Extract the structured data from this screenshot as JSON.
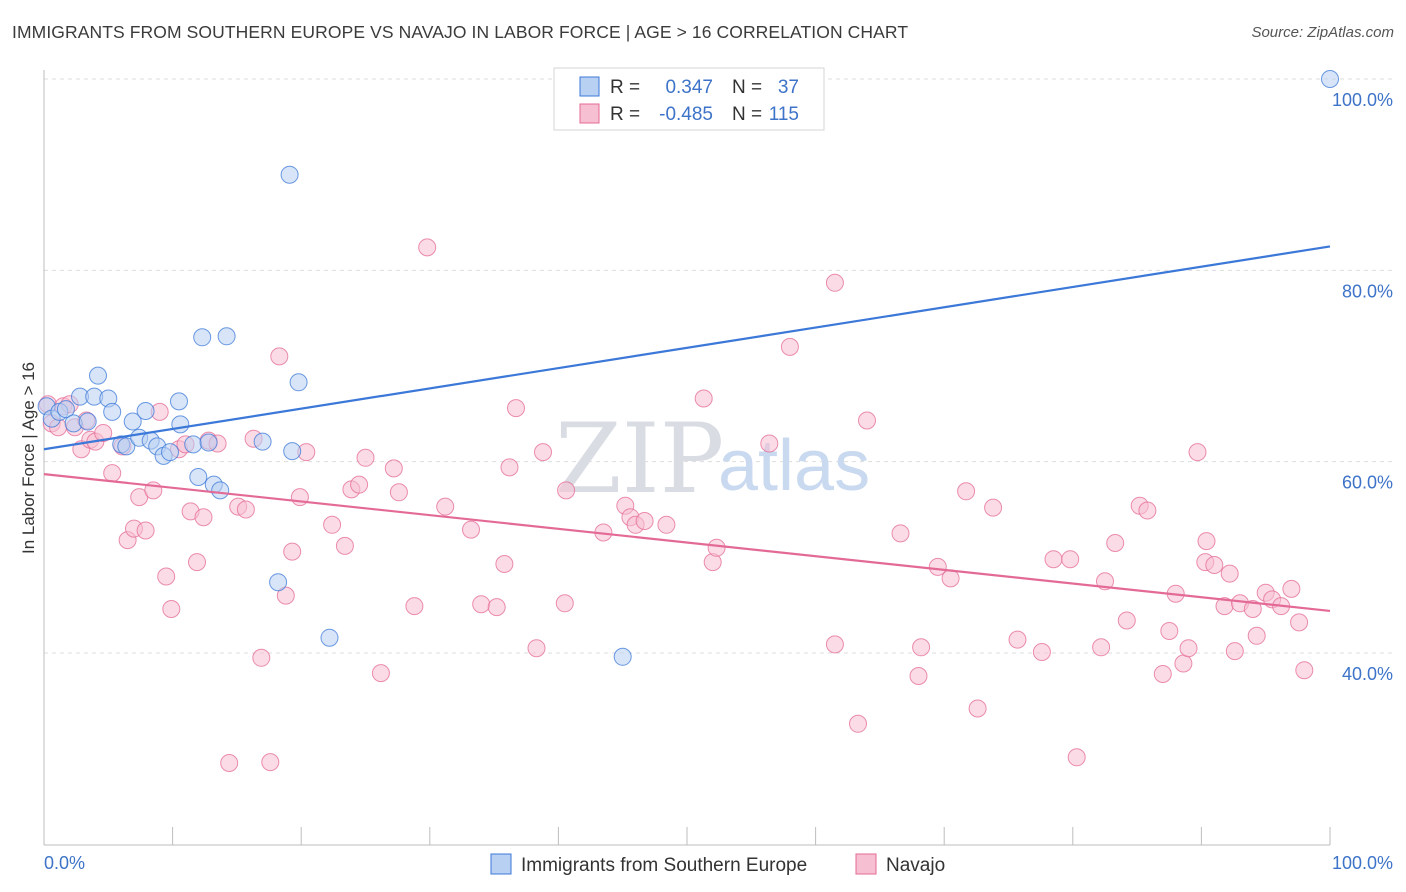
{
  "title": "IMMIGRANTS FROM SOUTHERN EUROPE VS NAVAJO IN LABOR FORCE | AGE > 16 CORRELATION CHART",
  "source": "Source: ZipAtlas.com",
  "watermark": {
    "zip": "ZIP",
    "atlas": "atlas"
  },
  "colors": {
    "blue": "#3b78d8",
    "blue_fill": "#b8d0f2",
    "pink": "#e46a96",
    "pink_fill": "#f7c0d2",
    "tick_text": "#3d73c8",
    "grid": "#dddddd"
  },
  "legend": {
    "rows": [
      {
        "r_label": "R =",
        "r_value": "0.347",
        "n_label": "N =",
        "n_value": "37"
      },
      {
        "r_label": "R =",
        "r_value": "-0.485",
        "n_label": "N =",
        "n_value": "115"
      }
    ]
  },
  "bottom_legend": [
    "Immigrants from Southern Europe",
    "Navajo"
  ],
  "chart_data": {
    "type": "scatter",
    "xlabel": "",
    "ylabel": "In Labor Force | Age > 16",
    "xlim": [
      0,
      100
    ],
    "ylim": [
      20,
      101
    ],
    "x_tick_labels": [
      "0.0%",
      "100.0%"
    ],
    "y_ticks": [
      40,
      60,
      80,
      100
    ],
    "y_tick_labels": [
      "40.0%",
      "60.0%",
      "80.0%",
      "100.0%"
    ],
    "grid": true,
    "legend_position": "top-center",
    "series": [
      {
        "name": "Immigrants from Southern Europe",
        "color": "#3b78d8",
        "trend": {
          "x": [
            0,
            100
          ],
          "y": [
            61.3,
            82.5
          ]
        },
        "points": [
          [
            0.2,
            65.8
          ],
          [
            0.6,
            64.5
          ],
          [
            1.2,
            65.2
          ],
          [
            1.7,
            65.5
          ],
          [
            2.3,
            64.0
          ],
          [
            2.8,
            66.8
          ],
          [
            3.4,
            64.2
          ],
          [
            3.9,
            66.8
          ],
          [
            4.2,
            69.0
          ],
          [
            5.0,
            66.6
          ],
          [
            5.3,
            65.2
          ],
          [
            6.0,
            61.8
          ],
          [
            6.4,
            61.6
          ],
          [
            6.9,
            64.2
          ],
          [
            7.4,
            62.5
          ],
          [
            7.9,
            65.3
          ],
          [
            8.3,
            62.2
          ],
          [
            8.8,
            61.6
          ],
          [
            9.3,
            60.6
          ],
          [
            9.8,
            61.0
          ],
          [
            10.6,
            63.9
          ],
          [
            10.5,
            66.3
          ],
          [
            11.6,
            61.8
          ],
          [
            12.0,
            58.4
          ],
          [
            12.3,
            73.0
          ],
          [
            12.8,
            62.0
          ],
          [
            13.2,
            57.6
          ],
          [
            13.7,
            57.0
          ],
          [
            14.2,
            73.1
          ],
          [
            17.0,
            62.1
          ],
          [
            18.2,
            47.4
          ],
          [
            19.1,
            90.0
          ],
          [
            19.3,
            61.1
          ],
          [
            19.8,
            68.3
          ],
          [
            22.2,
            41.6
          ],
          [
            45.0,
            39.6
          ],
          [
            100.0,
            100.0
          ]
        ]
      },
      {
        "name": "Navajo",
        "color": "#e46a96",
        "trend": {
          "x": [
            0,
            100
          ],
          "y": [
            58.7,
            44.4
          ]
        },
        "points": [
          [
            0.3,
            66.0
          ],
          [
            0.6,
            64.0
          ],
          [
            1.1,
            63.6
          ],
          [
            1.5,
            65.8
          ],
          [
            2.0,
            66.0
          ],
          [
            2.4,
            63.6
          ],
          [
            2.9,
            61.3
          ],
          [
            3.3,
            64.3
          ],
          [
            3.6,
            62.3
          ],
          [
            4.0,
            62.1
          ],
          [
            4.6,
            63.0
          ],
          [
            5.3,
            58.8
          ],
          [
            6.1,
            61.6
          ],
          [
            6.5,
            51.8
          ],
          [
            7.0,
            53.0
          ],
          [
            7.4,
            56.3
          ],
          [
            7.9,
            52.8
          ],
          [
            8.5,
            57.0
          ],
          [
            9.0,
            65.2
          ],
          [
            9.5,
            48.0
          ],
          [
            9.9,
            44.6
          ],
          [
            10.5,
            61.3
          ],
          [
            11.0,
            61.8
          ],
          [
            11.4,
            54.8
          ],
          [
            11.9,
            49.5
          ],
          [
            12.4,
            54.2
          ],
          [
            12.8,
            62.2
          ],
          [
            13.5,
            61.9
          ],
          [
            14.4,
            28.5
          ],
          [
            15.1,
            55.3
          ],
          [
            15.7,
            55.0
          ],
          [
            16.3,
            62.4
          ],
          [
            16.9,
            39.5
          ],
          [
            17.6,
            28.6
          ],
          [
            18.3,
            71.0
          ],
          [
            18.8,
            46.0
          ],
          [
            19.3,
            50.6
          ],
          [
            19.9,
            56.3
          ],
          [
            20.4,
            61.0
          ],
          [
            22.4,
            53.4
          ],
          [
            23.4,
            51.2
          ],
          [
            23.9,
            57.1
          ],
          [
            24.5,
            57.6
          ],
          [
            25.0,
            60.4
          ],
          [
            26.2,
            37.9
          ],
          [
            27.2,
            59.3
          ],
          [
            27.6,
            56.8
          ],
          [
            28.8,
            44.9
          ],
          [
            29.8,
            82.4
          ],
          [
            31.2,
            55.3
          ],
          [
            33.2,
            52.9
          ],
          [
            34.0,
            45.1
          ],
          [
            35.2,
            44.8
          ],
          [
            35.8,
            49.3
          ],
          [
            36.2,
            59.4
          ],
          [
            36.7,
            65.6
          ],
          [
            38.3,
            40.5
          ],
          [
            38.8,
            61.0
          ],
          [
            40.6,
            57.0
          ],
          [
            40.5,
            45.2
          ],
          [
            43.5,
            52.6
          ],
          [
            45.2,
            55.4
          ],
          [
            45.6,
            54.2
          ],
          [
            46.0,
            53.4
          ],
          [
            46.7,
            53.8
          ],
          [
            48.4,
            53.4
          ],
          [
            51.3,
            66.6
          ],
          [
            52.0,
            49.5
          ],
          [
            52.3,
            51.0
          ],
          [
            56.4,
            61.9
          ],
          [
            58.0,
            72.0
          ],
          [
            61.5,
            78.7
          ],
          [
            61.5,
            40.9
          ],
          [
            63.3,
            32.6
          ],
          [
            64.0,
            64.3
          ],
          [
            66.6,
            52.5
          ],
          [
            68.0,
            37.6
          ],
          [
            68.2,
            40.6
          ],
          [
            69.5,
            49.0
          ],
          [
            70.5,
            47.8
          ],
          [
            71.7,
            56.9
          ],
          [
            72.6,
            34.2
          ],
          [
            73.8,
            55.2
          ],
          [
            75.7,
            41.4
          ],
          [
            77.6,
            40.1
          ],
          [
            78.5,
            49.8
          ],
          [
            79.8,
            49.8
          ],
          [
            80.3,
            29.1
          ],
          [
            82.2,
            40.6
          ],
          [
            82.5,
            47.5
          ],
          [
            83.3,
            51.5
          ],
          [
            84.2,
            43.4
          ],
          [
            85.2,
            55.4
          ],
          [
            85.8,
            54.9
          ],
          [
            87.0,
            37.8
          ],
          [
            87.5,
            42.3
          ],
          [
            88.0,
            46.2
          ],
          [
            88.6,
            38.9
          ],
          [
            89.0,
            40.5
          ],
          [
            89.7,
            61.0
          ],
          [
            90.3,
            49.5
          ],
          [
            90.4,
            51.7
          ],
          [
            91.0,
            49.2
          ],
          [
            91.8,
            44.9
          ],
          [
            92.2,
            48.3
          ],
          [
            92.6,
            40.2
          ],
          [
            93.0,
            45.2
          ],
          [
            94.0,
            44.6
          ],
          [
            94.3,
            41.8
          ],
          [
            95.0,
            46.3
          ],
          [
            95.5,
            45.6
          ],
          [
            96.2,
            44.9
          ],
          [
            97.0,
            46.7
          ],
          [
            97.6,
            43.2
          ],
          [
            98.0,
            38.2
          ]
        ]
      }
    ]
  }
}
